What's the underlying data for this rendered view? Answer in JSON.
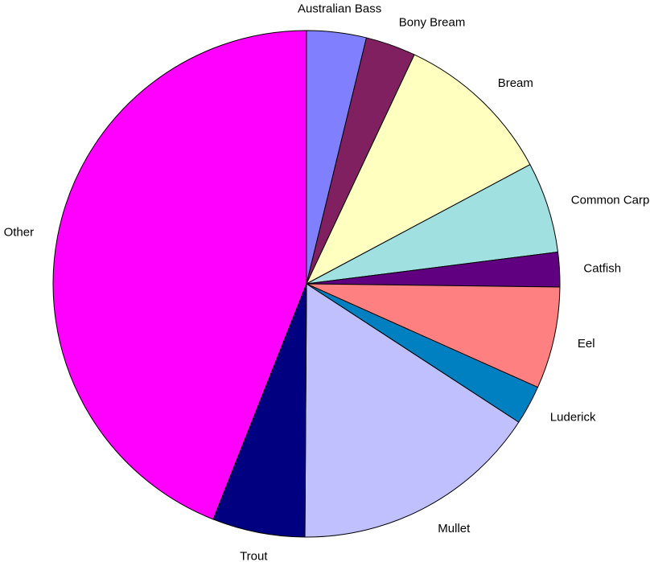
{
  "chart_data": {
    "type": "pie",
    "title": "",
    "start_angle_deg": 0,
    "direction": "clockwise",
    "legend": "none",
    "slices": [
      {
        "label": "Australian Bass",
        "value": 3.8,
        "color": "#8080FF"
      },
      {
        "label": "Bony Bream",
        "value": 3.2,
        "color": "#802060"
      },
      {
        "label": "Bream",
        "value": 10.2,
        "color": "#FFFFC0"
      },
      {
        "label": "Common Carp",
        "value": 5.8,
        "color": "#A0E0E0"
      },
      {
        "label": "Catfish",
        "value": 2.2,
        "color": "#600080"
      },
      {
        "label": "Eel",
        "value": 6.5,
        "color": "#FF8080"
      },
      {
        "label": "Luderick",
        "value": 2.5,
        "color": "#0080C0"
      },
      {
        "label": "Mullet",
        "value": 15.9,
        "color": "#C0C0FF"
      },
      {
        "label": "Trout",
        "value": 5.9,
        "color": "#000080"
      },
      {
        "label": "Other",
        "value": 44.0,
        "color": "#FF00FF"
      }
    ]
  }
}
